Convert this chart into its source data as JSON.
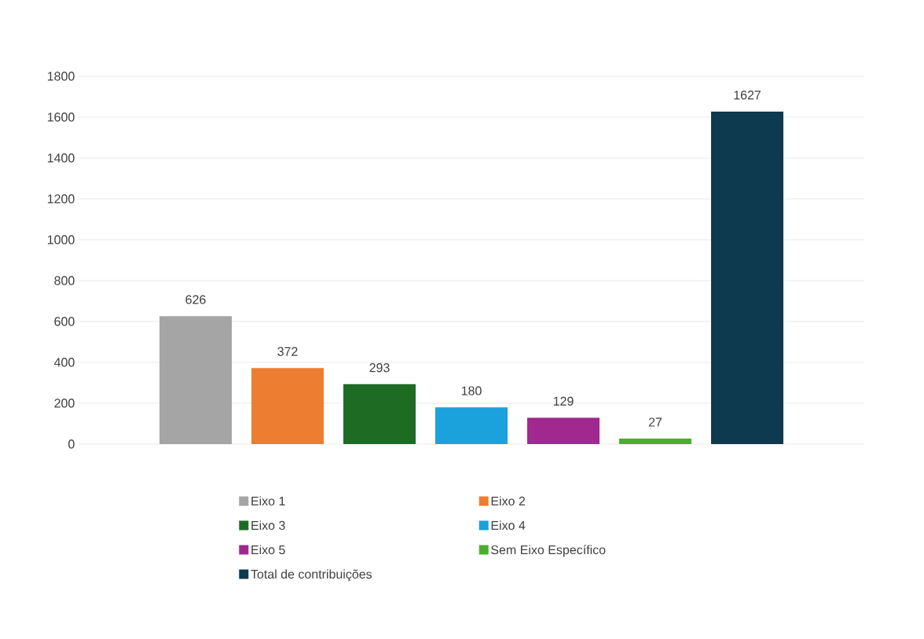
{
  "chart_data": {
    "type": "bar",
    "categories": [
      null
    ],
    "series": [
      {
        "name": "Eixo 1",
        "color": "#a5a5a5",
        "values": [
          626
        ]
      },
      {
        "name": "Eixo 2",
        "color": "#ed7d31",
        "values": [
          372
        ]
      },
      {
        "name": "Eixo 3",
        "color": "#1e6b24",
        "values": [
          293
        ]
      },
      {
        "name": "Eixo 4",
        "color": "#1ba1dc",
        "values": [
          180
        ]
      },
      {
        "name": "Eixo 5",
        "color": "#a1288f",
        "values": [
          129
        ]
      },
      {
        "name": "Sem Eixo Específico",
        "color": "#4caf2a",
        "values": [
          27
        ]
      },
      {
        "name": "Total de contribuições",
        "color": "#0d3a4e",
        "values": [
          1627
        ]
      }
    ],
    "ylim": [
      0,
      1800
    ],
    "yticks": [
      0,
      200,
      400,
      600,
      800,
      1000,
      1200,
      1400,
      1600,
      1800
    ],
    "grid": "y",
    "legend": "bottom",
    "data_labels": true
  }
}
